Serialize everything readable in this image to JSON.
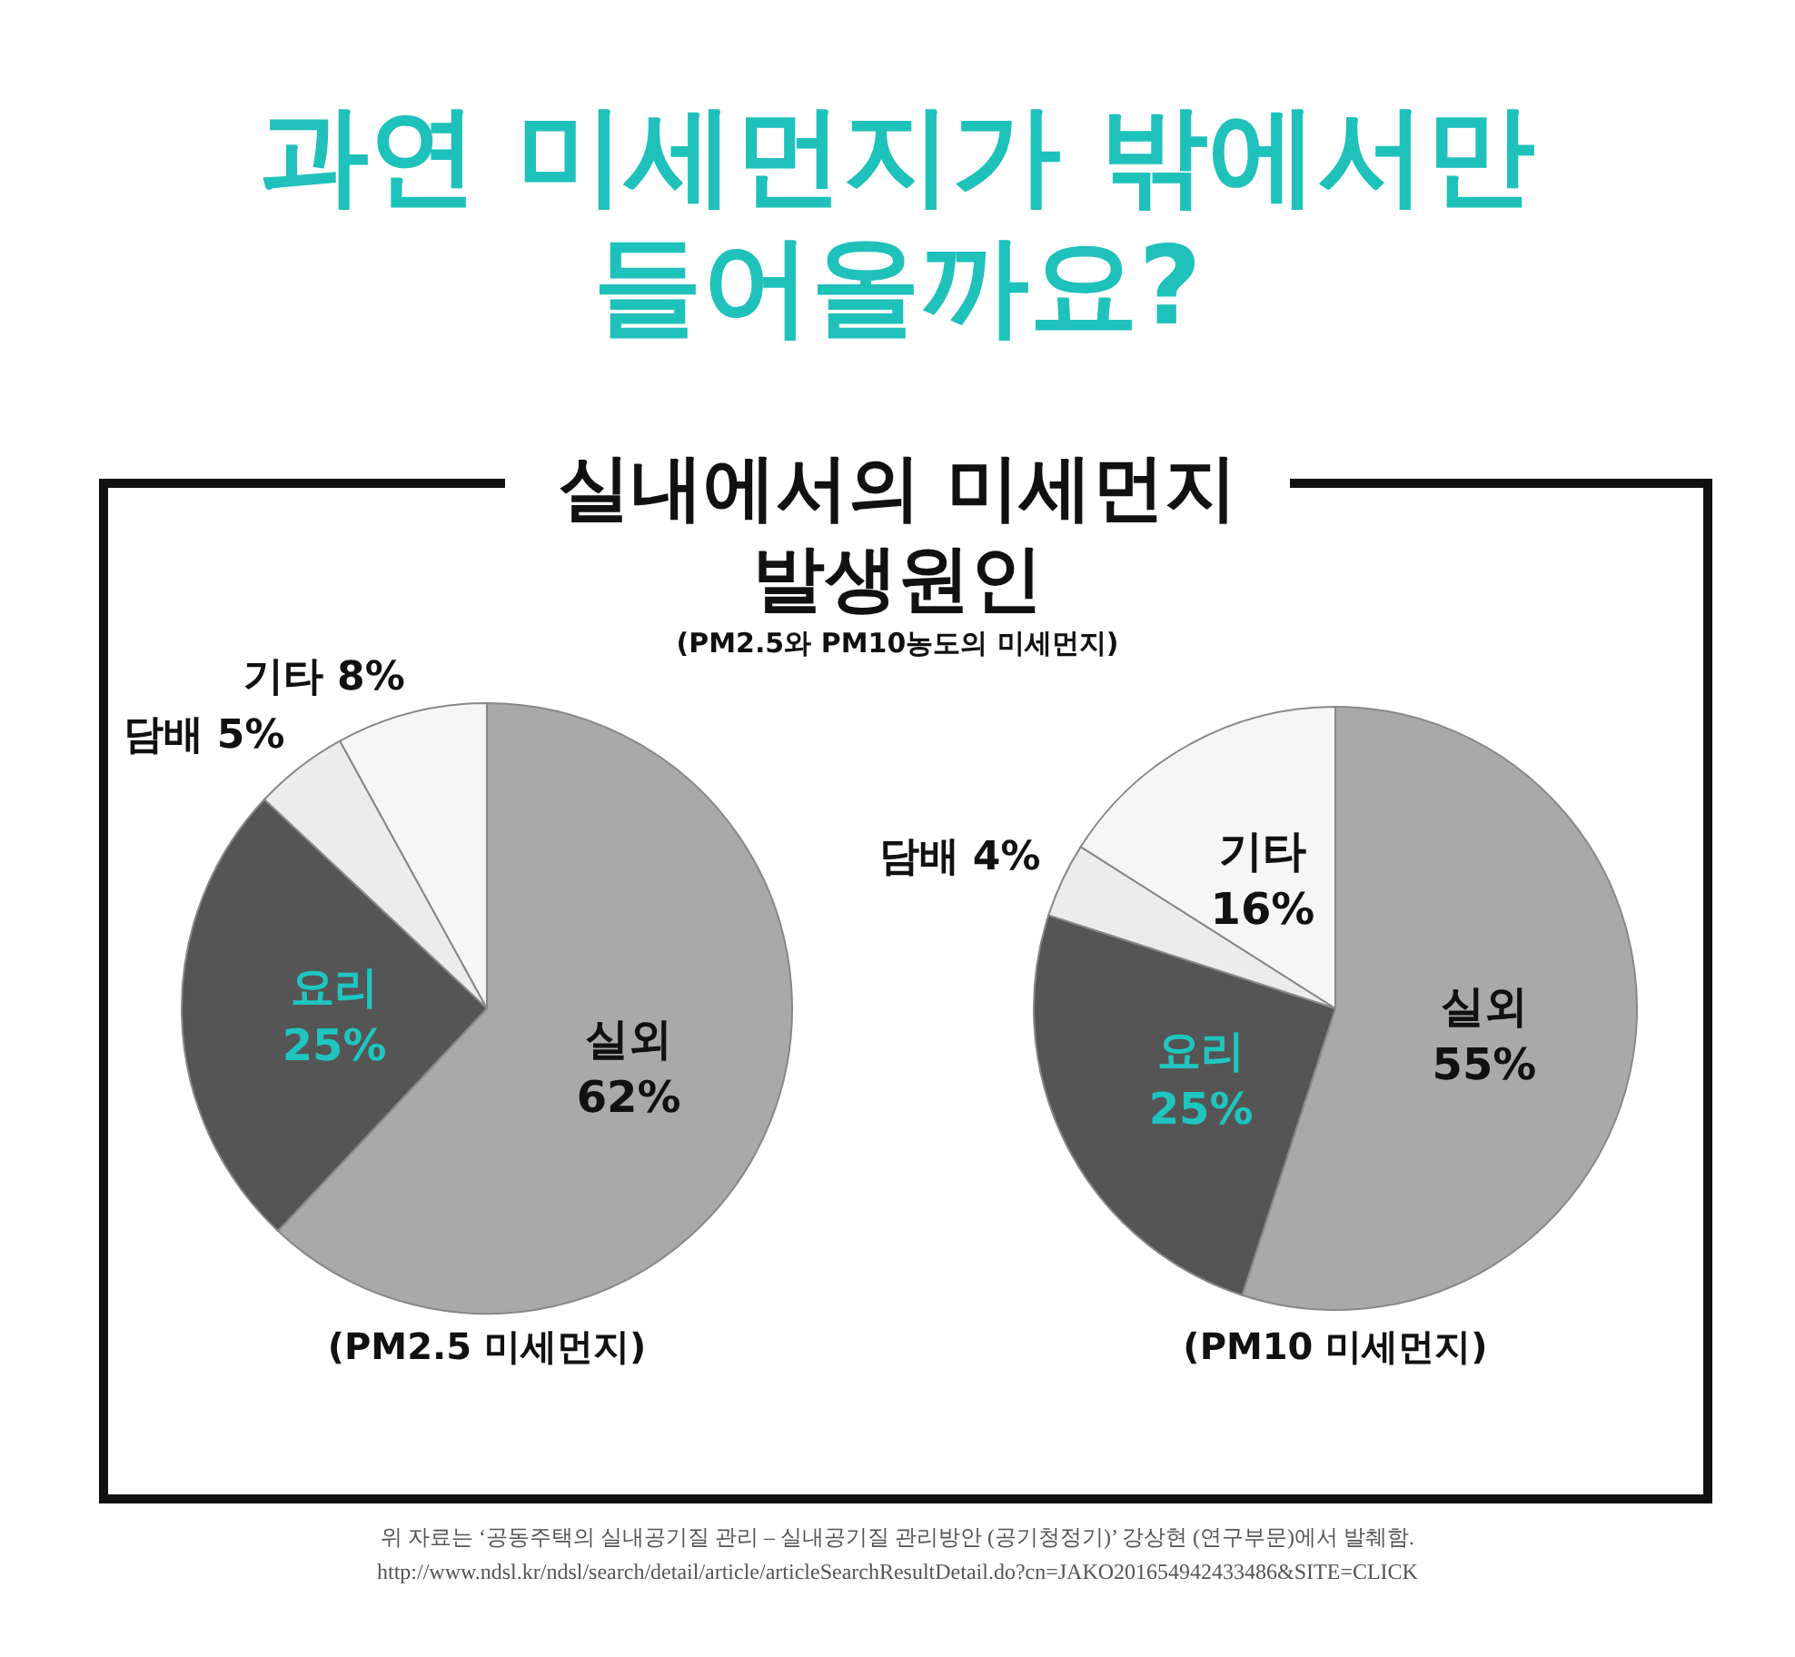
{
  "chart_data": [
    {
      "type": "pie",
      "title": "과연 미세먼지가 밖에서만 들어올까요?",
      "subtitle": "실내에서의 미세먼지 발생원인",
      "annotations": [
        "(PM2.5와 PM10농도의 미세먼지)"
      ],
      "xlabel": "(PM2.5 미세먼지)",
      "categories": [
        "실외",
        "요리",
        "담배",
        "기타"
      ],
      "values": [
        62,
        25,
        5,
        8
      ],
      "value_labels": [
        "62%",
        "25%",
        "5%",
        "8%"
      ],
      "colors": [
        "#a9a9a9",
        "#555555",
        "#ececec",
        "#f6f6f6"
      ]
    },
    {
      "type": "pie",
      "xlabel": "(PM10 미세먼지)",
      "annotations": [
        "위 자료는 ‘공동주택의 실내공기질 관리 – 실내공기질 관리방안 (공기청정기)’ 강상현 (연구부문)에서 발췌함.",
        "http://www.ndsl.kr/ndsl/search/detail/article/articleSearchResultDetail.do?cn=JAKO201654942433486&SITE=CLICK"
      ],
      "categories": [
        "실외",
        "요리",
        "담배",
        "기타"
      ],
      "values": [
        55,
        25,
        4,
        16
      ],
      "value_labels": [
        "55%",
        "25%",
        "4%",
        "16%"
      ],
      "colors": [
        "#a9a9a9",
        "#555555",
        "#ececec",
        "#f6f6f6"
      ]
    }
  ]
}
